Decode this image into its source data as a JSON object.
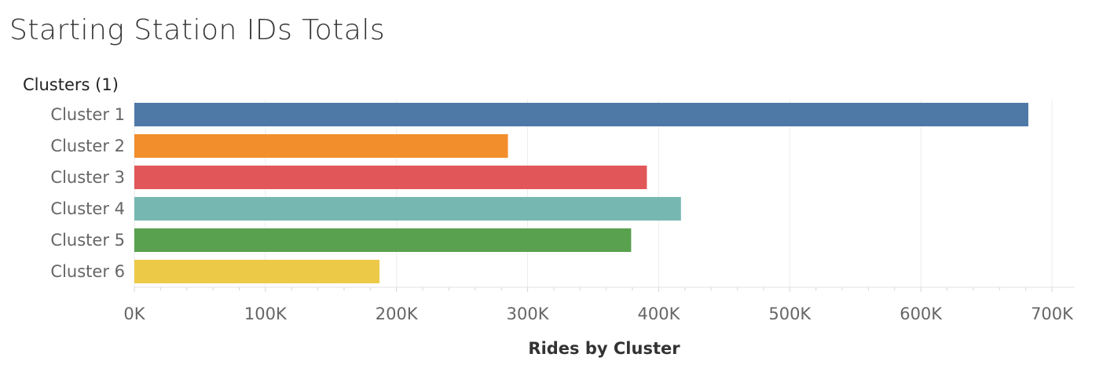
{
  "title": "Starting Station IDs Totals",
  "chart_data": {
    "type": "bar",
    "orientation": "horizontal",
    "title": "Starting Station IDs Totals",
    "row_header": "Clusters (1)",
    "xlabel": "Rides by Cluster",
    "categories": [
      "Cluster 1",
      "Cluster 2",
      "Cluster 3",
      "Cluster 4",
      "Cluster 5",
      "Cluster 6"
    ],
    "values": [
      682000,
      285000,
      391000,
      417000,
      379000,
      187000
    ],
    "colors": [
      "#4e79a7",
      "#f28e2b",
      "#e15759",
      "#76b7b2",
      "#59a14f",
      "#edc948"
    ],
    "xlim": [
      0,
      700000
    ],
    "x_ticks": [
      0,
      100000,
      200000,
      300000,
      400000,
      500000,
      600000,
      700000
    ],
    "x_tick_labels": [
      "0K",
      "100K",
      "200K",
      "300K",
      "400K",
      "500K",
      "600K",
      "700K"
    ],
    "grid": true
  }
}
